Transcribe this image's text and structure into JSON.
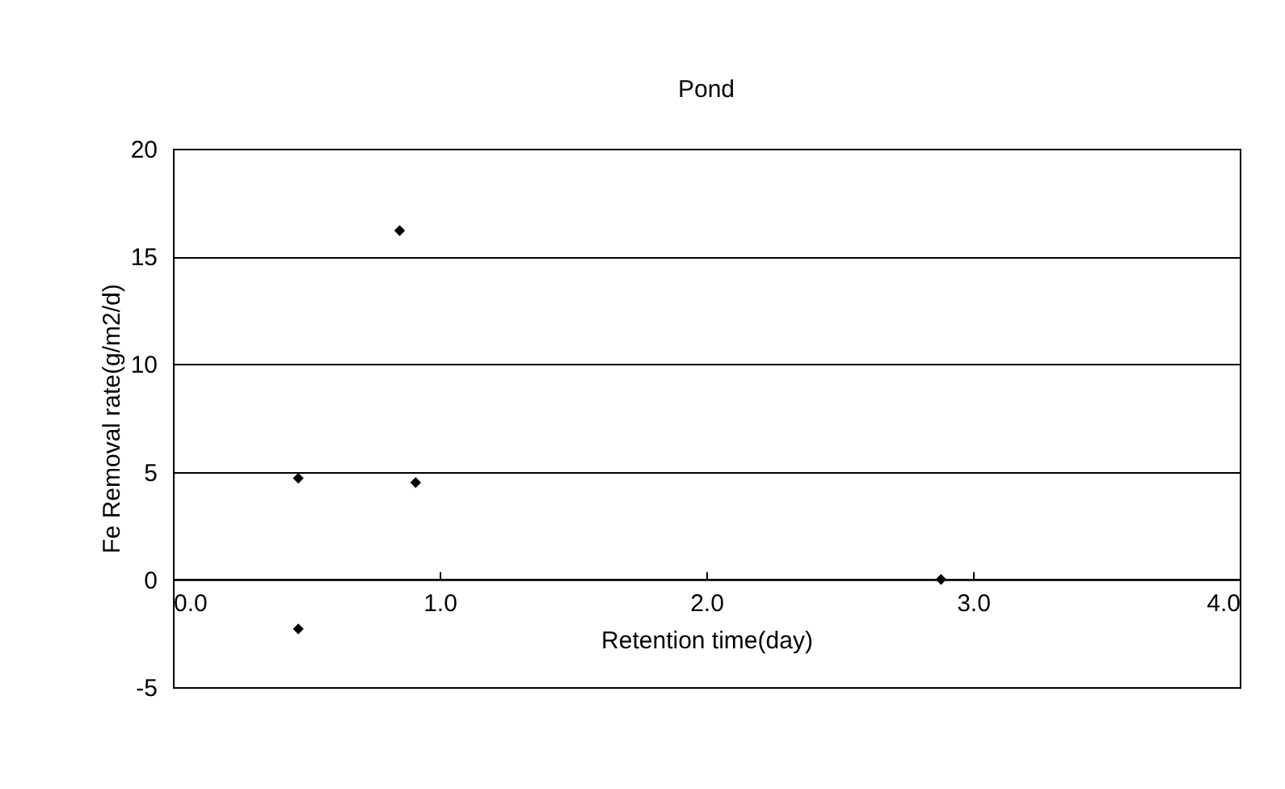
{
  "chart_data": {
    "type": "scatter",
    "title": "Pond",
    "xlabel": "Retention time(day)",
    "ylabel": "Fe Removal rate(g/m2/d)",
    "x": [
      0.47,
      0.85,
      0.91,
      0.47,
      2.88
    ],
    "series": [
      {
        "color": "#000000",
        "values": [
          4.7,
          16.2,
          4.5,
          -2.3,
          0
        ]
      }
    ],
    "xlim": [
      0,
      4
    ],
    "xticks": [
      {
        "value": 0,
        "label": "0.0"
      },
      {
        "value": 1,
        "label": "1.0"
      },
      {
        "value": 2,
        "label": "2.0"
      },
      {
        "value": 3,
        "label": "3.0"
      },
      {
        "value": 4,
        "label": "4.0"
      }
    ],
    "ylim": [
      -5,
      20
    ],
    "yticks": [
      -5,
      0,
      5,
      10,
      15,
      20
    ],
    "grid": "y",
    "marker": "diamond"
  }
}
